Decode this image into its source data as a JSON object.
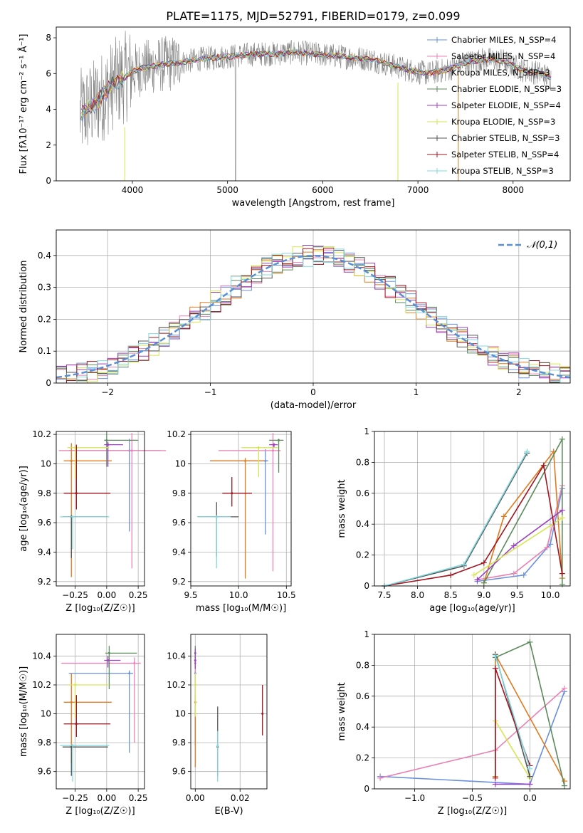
{
  "title": "PLATE=1175, MJD=52791, FIBERID=0179, z=0.099",
  "series_colors": [
    "#6a8fdf",
    "#e982b4",
    "#e07a1f",
    "#5c8a5c",
    "#9b3fc1",
    "#d6e553",
    "#555555",
    "#a01520",
    "#80d8e0"
  ],
  "chart_data": [
    {
      "type": "line",
      "panel": "spectrum",
      "title": "PLATE=1175, MJD=52791, FIBERID=0179, z=0.099",
      "xlabel": "wavelength [Angstrom, rest frame]",
      "ylabel": "Flux [fλ10⁻¹⁷ erg cm⁻² s⁻¹ Å⁻¹]",
      "xlim": [
        3200,
        8600
      ],
      "ylim": [
        0,
        8.6
      ],
      "xticks": [
        4000,
        5000,
        6000,
        7000,
        8000
      ],
      "yticks": [
        0,
        2,
        4,
        6,
        8
      ],
      "grid": false,
      "legend_position": "right",
      "series": [
        {
          "name": "Chabrier MILES, N_SSP=4"
        },
        {
          "name": "Salpeter MILES, N_SSP=4"
        },
        {
          "name": "Kroupa MILES, N_SSP=3"
        },
        {
          "name": "Chabrier ELODIE, N_SSP=3"
        },
        {
          "name": "Salpeter ELODIE, N_SSP=4"
        },
        {
          "name": "Kroupa ELODIE, N_SSP=3"
        },
        {
          "name": "Chabrier STELIB, N_SSP=3"
        },
        {
          "name": "Salpeter STELIB, N_SSP=4"
        },
        {
          "name": "Kroupa STELIB, N_SSP=3"
        }
      ],
      "continuum": {
        "x": [
          3450,
          3600,
          3700,
          3800,
          3900,
          4000,
          4100,
          4300,
          4500,
          4700,
          4900,
          5100,
          5300,
          5500,
          5700,
          5900,
          6100,
          6300,
          6500,
          6700,
          6900,
          7100,
          7300,
          7500,
          7700,
          7900,
          8100,
          8300,
          8500
        ],
        "y": [
          3.7,
          4.3,
          4.8,
          5.4,
          5.7,
          6.1,
          6.3,
          6.5,
          6.6,
          6.8,
          6.9,
          7.0,
          7.1,
          7.1,
          7.2,
          7.1,
          7.0,
          6.9,
          6.8,
          6.5,
          6.2,
          6.0,
          6.2,
          6.6,
          6.8,
          6.7,
          6.2,
          6.0,
          5.5
        ]
      }
    },
    {
      "type": "histogram",
      "panel": "residuals",
      "xlabel": "(data-model)/error",
      "ylabel": "Normed distribution",
      "xlim": [
        -2.5,
        2.5
      ],
      "ylim": [
        0,
        0.48
      ],
      "xticks": [
        -2,
        -1,
        0,
        1,
        2
      ],
      "yticks": [
        0.0,
        0.1,
        0.2,
        0.3,
        0.4
      ],
      "grid": true,
      "legend": "𝒩(0,1)",
      "legend_position": "top-right",
      "bin_edges_start": -2.5,
      "bin_width": 0.1,
      "reference_curve": "normal(0,1)"
    },
    {
      "type": "scatter",
      "panel": "age-vs-Z",
      "xlabel": "Z [log₁₀(Z/Z☉)]",
      "ylabel": "age  [log₁₀(age/yr)]",
      "xlim": [
        -0.4,
        0.3
      ],
      "ylim": [
        9.17,
        10.22
      ],
      "xticks": [
        -0.25,
        0.0,
        0.25
      ],
      "yticks": [
        9.2,
        9.4,
        9.6,
        9.8,
        10.0,
        10.2
      ],
      "grid": true,
      "points": [
        {
          "series": 0,
          "x": 0.18,
          "y": 10.09,
          "xerr": [
            0.48,
            0.25
          ],
          "yerr": [
            0.55,
            0.08
          ]
        },
        {
          "series": 1,
          "x": 0.2,
          "y": 10.09,
          "xerr": [
            0.58,
            0.27
          ],
          "yerr": [
            0.8,
            0.12
          ]
        },
        {
          "series": 2,
          "x": -0.28,
          "y": 10.02,
          "xerr": [
            0.06,
            0.32
          ],
          "yerr": [
            0.79,
            0.12
          ]
        },
        {
          "series": 3,
          "x": 0.0,
          "y": 10.16,
          "xerr": [
            0.02,
            0.25
          ],
          "yerr": [
            0.18,
            0.06
          ]
        },
        {
          "series": 4,
          "x": 0.01,
          "y": 10.13,
          "xerr": [
            0.03,
            0.12
          ],
          "yerr": [
            0.15,
            0.02
          ]
        },
        {
          "series": 5,
          "x": -0.25,
          "y": 10.11,
          "xerr": [
            0.06,
            0.27
          ],
          "yerr": [
            0.21,
            0.01
          ]
        },
        {
          "series": 6,
          "x": -0.28,
          "y": 9.64,
          "xerr": [
            0.07,
            0.29
          ],
          "yerr": [
            0.28,
            0.01
          ]
        },
        {
          "series": 7,
          "x": -0.24,
          "y": 9.8,
          "xerr": [
            0.1,
            0.27
          ],
          "yerr": [
            0.11,
            0.33
          ]
        },
        {
          "series": 8,
          "x": -0.27,
          "y": 9.64,
          "xerr": [
            0.1,
            0.29
          ],
          "yerr": [
            0.22,
            0.01
          ]
        }
      ]
    },
    {
      "type": "scatter",
      "panel": "age-vs-mass",
      "xlabel": "mass [log₁₀(M/M☉)]",
      "ylabel": "",
      "xlim": [
        9.5,
        10.55
      ],
      "ylim": [
        9.17,
        10.22
      ],
      "xticks": [
        9.5,
        10.0,
        10.5
      ],
      "yticks": [
        9.2,
        9.4,
        9.6,
        9.8,
        10.0,
        10.2
      ],
      "grid": true,
      "points": [
        {
          "series": 0,
          "x": 10.28,
          "y": 10.02,
          "xerr": [
            0.58,
            0.03
          ],
          "yerr": [
            0.5,
            0.08
          ]
        },
        {
          "series": 1,
          "x": 10.36,
          "y": 10.09,
          "xerr": [
            0.57,
            0.08
          ],
          "yerr": [
            0.82,
            0.12
          ]
        },
        {
          "series": 2,
          "x": 10.07,
          "y": 10.02,
          "xerr": [
            0.36,
            0.2
          ],
          "yerr": [
            0.8,
            0.02
          ]
        },
        {
          "series": 3,
          "x": 10.42,
          "y": 10.16,
          "xerr": [
            0.1,
            0.05
          ],
          "yerr": [
            0.22,
            0.01
          ]
        },
        {
          "series": 4,
          "x": 10.37,
          "y": 10.13,
          "xerr": [
            0.05,
            0.04
          ],
          "yerr": [
            0.02,
            0.01
          ]
        },
        {
          "series": 5,
          "x": 10.21,
          "y": 10.11,
          "xerr": [
            0.18,
            0.2
          ],
          "yerr": [
            0.2,
            0.01
          ]
        },
        {
          "series": 6,
          "x": 9.77,
          "y": 9.64,
          "xerr": [
            0.2,
            0.23
          ],
          "yerr": [
            0.27,
            0.1
          ]
        },
        {
          "series": 7,
          "x": 9.93,
          "y": 9.8,
          "xerr": [
            0.1,
            0.21
          ],
          "yerr": [
            0.09,
            0.11
          ]
        },
        {
          "series": 8,
          "x": 9.77,
          "y": 9.64,
          "xerr": [
            0.2,
            0.15
          ],
          "yerr": [
            0.35,
            0.01
          ]
        }
      ]
    },
    {
      "type": "line",
      "panel": "mass-weight-vs-age",
      "xlabel": "age  [log₁₀(age/yr)]",
      "ylabel": "mass weight",
      "xlim": [
        7.35,
        10.3
      ],
      "ylim": [
        0,
        1.0
      ],
      "xticks": [
        7.5,
        8.0,
        8.5,
        9.0,
        9.5,
        10.0
      ],
      "yticks": [
        0.0,
        0.2,
        0.4,
        0.6,
        0.8,
        1.0
      ],
      "grid": true,
      "series": [
        {
          "color_index": 0,
          "x": [
            8.9,
            9.6,
            10.0,
            10.18
          ],
          "y": [
            0.03,
            0.07,
            0.27,
            0.63
          ]
        },
        {
          "color_index": 1,
          "x": [
            8.9,
            9.45,
            9.95,
            10.18
          ],
          "y": [
            0.04,
            0.08,
            0.25,
            0.65
          ]
        },
        {
          "color_index": 2,
          "x": [
            9.0,
            9.3,
            10.05,
            10.18
          ],
          "y": [
            0.02,
            0.45,
            0.87,
            0.05
          ]
        },
        {
          "color_index": 3,
          "x": [
            9.0,
            10.18,
            10.18
          ],
          "y": [
            0.02,
            0.95,
            0.01
          ]
        },
        {
          "color_index": 4,
          "x": [
            8.9,
            9.45,
            10.18
          ],
          "y": [
            0.04,
            0.26,
            0.49
          ]
        },
        {
          "color_index": 5,
          "x": [
            8.85,
            10.18
          ],
          "y": [
            0.07,
            0.44
          ]
        },
        {
          "color_index": 6,
          "x": [
            7.5,
            8.7,
            9.65
          ],
          "y": [
            0.0,
            0.13,
            0.86
          ]
        },
        {
          "color_index": 7,
          "x": [
            7.5,
            8.5,
            9.0,
            9.9,
            10.18
          ],
          "y": [
            0.0,
            0.07,
            0.15,
            0.78,
            0.08
          ]
        },
        {
          "color_index": 8,
          "x": [
            7.5,
            8.7,
            9.65
          ],
          "y": [
            0.0,
            0.14,
            0.87
          ]
        }
      ]
    },
    {
      "type": "scatter",
      "panel": "mass-vs-Z",
      "xlabel": "Z [log₁₀(Z/Z☉)]",
      "ylabel": "mass [log₁₀(M/M☉)]",
      "xlim": [
        -0.4,
        0.3
      ],
      "ylim": [
        9.48,
        10.55
      ],
      "xticks": [
        -0.25,
        0.0,
        0.25
      ],
      "yticks": [
        9.6,
        9.8,
        10.0,
        10.2,
        10.4
      ],
      "grid": true,
      "points": [
        {
          "series": 0,
          "x": 0.18,
          "y": 10.28,
          "xerr": [
            0.48,
            0.03
          ],
          "yerr": [
            0.55,
            0.02
          ]
        },
        {
          "series": 1,
          "x": 0.22,
          "y": 10.35,
          "xerr": [
            0.58,
            0.05
          ],
          "yerr": [
            0.55,
            0.04
          ]
        },
        {
          "series": 2,
          "x": -0.28,
          "y": 10.08,
          "xerr": [
            0.06,
            0.32
          ],
          "yerr": [
            0.42,
            0.2
          ]
        },
        {
          "series": 3,
          "x": 0.02,
          "y": 10.42,
          "xerr": [
            0.03,
            0.22
          ],
          "yerr": [
            0.25,
            0.05
          ]
        },
        {
          "series": 4,
          "x": 0.01,
          "y": 10.37,
          "xerr": [
            0.03,
            0.1
          ],
          "yerr": [
            0.05,
            0.03
          ]
        },
        {
          "series": 5,
          "x": -0.25,
          "y": 10.2,
          "xerr": [
            0.06,
            0.27
          ],
          "yerr": [
            0.23,
            0.02
          ]
        },
        {
          "series": 6,
          "x": -0.28,
          "y": 9.77,
          "xerr": [
            0.07,
            0.29
          ],
          "yerr": [
            0.2,
            0.01
          ]
        },
        {
          "series": 7,
          "x": -0.24,
          "y": 9.93,
          "xerr": [
            0.1,
            0.27
          ],
          "yerr": [
            0.09,
            0.2
          ]
        },
        {
          "series": 8,
          "x": -0.27,
          "y": 9.78,
          "xerr": [
            0.1,
            0.29
          ],
          "yerr": [
            0.25,
            0.01
          ]
        }
      ]
    },
    {
      "type": "scatter",
      "panel": "mass-vs-ebv",
      "xlabel": "E(B-V)",
      "ylabel": "",
      "xlim": [
        -0.002,
        0.032
      ],
      "ylim": [
        9.48,
        10.55
      ],
      "xticks": [
        0.0,
        0.02
      ],
      "yticks": [
        9.6,
        9.8,
        10.0,
        10.2,
        10.4
      ],
      "grid": true,
      "points": [
        {
          "series": 0,
          "x": 0.0,
          "y": 10.28,
          "yerr": [
            0.5,
            0.02
          ]
        },
        {
          "series": 1,
          "x": 0.0,
          "y": 10.35,
          "yerr": [
            0.55,
            0.1
          ]
        },
        {
          "series": 2,
          "x": 0.0,
          "y": 10.08,
          "yerr": [
            0.45,
            0.05
          ]
        },
        {
          "series": 3,
          "x": 0.0,
          "y": 10.42,
          "yerr": [
            0.1,
            0.05
          ]
        },
        {
          "series": 4,
          "x": 0.0,
          "y": 10.37,
          "yerr": [
            0.06,
            0.08
          ]
        },
        {
          "series": 5,
          "x": 0.0,
          "y": 10.2,
          "yerr": [
            0.22,
            0.08
          ]
        },
        {
          "series": 6,
          "x": 0.01,
          "y": 9.77,
          "yerr": [
            0.2,
            0.28
          ]
        },
        {
          "series": 7,
          "x": 0.03,
          "y": 10.0,
          "yerr": [
            0.15,
            0.2
          ]
        },
        {
          "series": 8,
          "x": 0.01,
          "y": 9.78,
          "yerr": [
            0.25,
            0.1
          ]
        }
      ]
    },
    {
      "type": "line",
      "panel": "mass-weight-vs-Z",
      "xlabel": "Z [log₁₀(Z/Z☉)]",
      "ylabel": "mass weight",
      "xlim": [
        -1.35,
        0.35
      ],
      "ylim": [
        0,
        1.0
      ],
      "xticks": [
        -1.0,
        -0.5,
        0.0
      ],
      "yticks": [
        0.0,
        0.2,
        0.4,
        0.6,
        0.8,
        1.0
      ],
      "grid": true,
      "series": [
        {
          "color_index": 0,
          "x": [
            -1.3,
            0.0,
            0.3
          ],
          "y": [
            0.08,
            0.03,
            0.63
          ]
        },
        {
          "color_index": 1,
          "x": [
            -1.3,
            -0.3,
            0.3
          ],
          "y": [
            0.07,
            0.25,
            0.65
          ]
        },
        {
          "color_index": 2,
          "x": [
            -0.3,
            -0.3,
            0.3
          ],
          "y": [
            0.08,
            0.87,
            0.05
          ]
        },
        {
          "color_index": 3,
          "x": [
            -0.3,
            0.0,
            0.3
          ],
          "y": [
            0.85,
            0.95,
            0.02
          ]
        },
        {
          "color_index": 4,
          "x": [
            -0.3,
            0.0
          ],
          "y": [
            0.03,
            0.03
          ]
        },
        {
          "color_index": 5,
          "x": [
            -0.3,
            0.0
          ],
          "y": [
            0.44,
            0.07
          ]
        },
        {
          "color_index": 6,
          "x": [
            -0.3,
            0.0
          ],
          "y": [
            0.87,
            0.08
          ]
        },
        {
          "color_index": 7,
          "x": [
            -0.3,
            -0.3,
            0.0
          ],
          "y": [
            0.07,
            0.78,
            0.15
          ]
        },
        {
          "color_index": 8,
          "x": [
            -0.3,
            0.0
          ],
          "y": [
            0.86,
            0.13
          ]
        }
      ]
    }
  ]
}
